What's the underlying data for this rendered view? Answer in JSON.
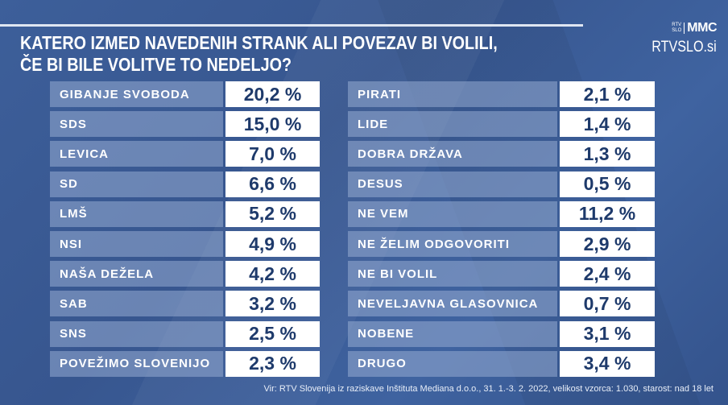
{
  "title_line1": "KATERO IZMED NAVEDENIH STRANK ALI POVEZAV BI VOLILI,",
  "title_line2": "ČE BI BILE VOLITVE TO NEDELJO?",
  "logo": {
    "rtv_top": "RTV",
    "rtv_bottom": "SLO",
    "mmc": "MMC",
    "site": "RTVSLO.si"
  },
  "source": "Vir: RTV Slovenija iz raziskave Inštituta Mediana d.o.o., 31. 1.-3. 2. 2022, velikost vzorca: 1.030, starost: nad 18 let",
  "chart_data": {
    "type": "table",
    "title": "KATERO IZMED NAVEDENIH STRANK ALI POVEZAV BI VOLILI, ČE BI BILE VOLITVE TO NEDELJO?",
    "unit": "%",
    "left": [
      {
        "label": "GIBANJE SVOBODA",
        "value": "20,2 %"
      },
      {
        "label": "SDS",
        "value": "15,0 %"
      },
      {
        "label": "LEVICA",
        "value": "7,0 %"
      },
      {
        "label": "SD",
        "value": "6,6 %"
      },
      {
        "label": "LMŠ",
        "value": "5,2 %"
      },
      {
        "label": "NSI",
        "value": "4,9 %"
      },
      {
        "label": "NAŠA DEŽELA",
        "value": "4,2 %"
      },
      {
        "label": "SAB",
        "value": "3,2 %"
      },
      {
        "label": "SNS",
        "value": "2,5 %"
      },
      {
        "label": "POVEŽIMO SLOVENIJO",
        "value": "2,3 %"
      }
    ],
    "right": [
      {
        "label": "PIRATI",
        "value": "2,1 %"
      },
      {
        "label": "LIDE",
        "value": "1,4 %"
      },
      {
        "label": "DOBRA DRŽAVA",
        "value": "1,3 %"
      },
      {
        "label": "DESUS",
        "value": "0,5 %"
      },
      {
        "label": "NE VEM",
        "value": "11,2 %"
      },
      {
        "label": "NE ŽELIM ODGOVORITI",
        "value": "2,9 %"
      },
      {
        "label": "NE BI VOLIL",
        "value": "2,4 %"
      },
      {
        "label": "NEVELJAVNA GLASOVNICA",
        "value": "0,7 %"
      },
      {
        "label": "NOBENE",
        "value": "3,1 %"
      },
      {
        "label": "DRUGO",
        "value": "3,4 %"
      }
    ]
  }
}
